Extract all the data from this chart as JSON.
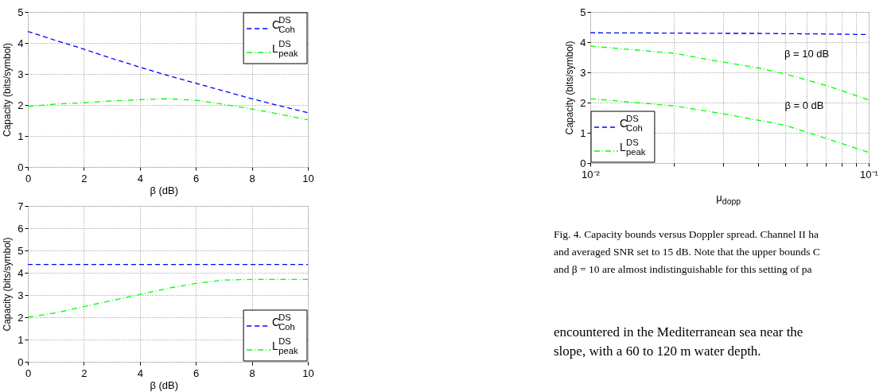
{
  "chart_data": [
    {
      "type": "line",
      "xlabel": "β (dB)",
      "ylabel": "Capacity (bits/symbol)",
      "x": [
        0,
        1,
        2,
        3,
        4,
        5,
        6,
        7,
        8,
        9,
        10
      ],
      "series": [
        {
          "name": "C$^{DS}$$_{Coh}$",
          "color": "#0000ff",
          "line_style": "dashed",
          "values": [
            4.37,
            4.08,
            3.8,
            3.5,
            3.22,
            2.95,
            2.7,
            2.45,
            2.2,
            1.97,
            1.75
          ]
        },
        {
          "name": "L$^{DS}$$_{peak}$",
          "color": "#00ff00",
          "line_style": "dashdot",
          "values": [
            1.95,
            2.03,
            2.07,
            2.13,
            2.17,
            2.2,
            2.15,
            2.02,
            1.87,
            1.7,
            1.52
          ]
        }
      ],
      "xlim": [
        0,
        10
      ],
      "ylim": [
        0,
        5
      ],
      "xticks": [
        0,
        2,
        4,
        6,
        8,
        10
      ],
      "yticks": [
        0,
        1,
        2,
        3,
        4,
        5
      ],
      "grid": true,
      "legend": "top right"
    },
    {
      "type": "line",
      "xlabel": "β (dB)",
      "ylabel": "Capacity (bits/symbol)",
      "x": [
        0,
        1,
        2,
        3,
        4,
        5,
        6,
        7,
        8,
        9,
        10
      ],
      "series": [
        {
          "name": "C$^{DS}$$_{Coh}$",
          "color": "#0000ff",
          "line_style": "dashed",
          "values": [
            4.37,
            4.37,
            4.37,
            4.37,
            4.37,
            4.37,
            4.37,
            4.37,
            4.37,
            4.37,
            4.37
          ]
        },
        {
          "name": "L$^{DS}$$_{peak}$",
          "color": "#00ff00",
          "line_style": "dashdot",
          "values": [
            2.0,
            2.2,
            2.48,
            2.75,
            3.02,
            3.3,
            3.52,
            3.67,
            3.7,
            3.7,
            3.7
          ]
        }
      ],
      "xlim": [
        0,
        10
      ],
      "ylim": [
        0,
        7
      ],
      "xticks": [
        0,
        2,
        4,
        6,
        8,
        10
      ],
      "yticks": [
        0,
        1,
        2,
        3,
        4,
        5,
        6,
        7
      ],
      "grid": true,
      "legend": "bottom right"
    },
    {
      "type": "line",
      "xlabel": "μ$_{dopp}$",
      "ylabel": "Capacity (bits/symbol)",
      "x": [
        0.01,
        0.02,
        0.03,
        0.04,
        0.05,
        0.07,
        0.1
      ],
      "series": [
        {
          "name": "C$^{DS}$$_{Coh}$",
          "color": "#0000ff",
          "line_style": "dashed",
          "values": [
            4.31,
            4.3,
            4.29,
            4.29,
            4.28,
            4.27,
            4.25
          ]
        },
        {
          "name": "L$^{DS}$$_{peak}$",
          "color": "#00ff00",
          "line_style": "dashdot",
          "values": [
            3.87,
            3.63,
            3.34,
            3.15,
            2.95,
            2.57,
            2.09
          ]
        },
        {
          "color": "#00ff00",
          "line_style": "dashdot",
          "values": [
            2.13,
            1.89,
            1.63,
            1.42,
            1.25,
            0.82,
            0.35
          ]
        }
      ],
      "xlim": [
        0.01,
        0.1
      ],
      "ylim": [
        0,
        5
      ],
      "xticks": [
        {
          "value": 0.01,
          "label": "10⁻²"
        },
        {
          "value": 0.02,
          "label": null
        },
        {
          "value": 0.03,
          "label": null
        },
        {
          "value": 0.04,
          "label": null
        },
        {
          "value": 0.05,
          "label": null
        },
        {
          "value": 0.06,
          "label": null
        },
        {
          "value": 0.07,
          "label": null
        },
        {
          "value": 0.08,
          "label": null
        },
        {
          "value": 0.09,
          "label": null
        },
        {
          "value": 0.1,
          "label": "10⁻¹"
        }
      ],
      "yticks": [
        0,
        1,
        2,
        3,
        4,
        5
      ],
      "log": "x",
      "grid": true,
      "legend": "bottom left",
      "annotations": [
        "β = 10 dB",
        "β = 0 dB",
        "Fig. 4.   Capacity bounds versus Doppler spread. Channel II ha\nand averaged SNR set to 15 dB. Note that the upper bounds C\nand β = 10 are almost indistinguishable for this setting of pa",
        "encountered in the Mediterranean sea near the\nslope, with a 60 to 120 m water depth."
      ]
    }
  ]
}
